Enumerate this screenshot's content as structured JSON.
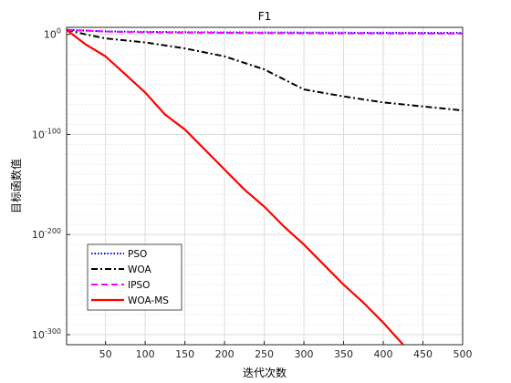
{
  "chart_data": {
    "type": "line",
    "title": "F1",
    "xlabel": "迭代次数",
    "ylabel": "目标函数值",
    "xlim": [
      1,
      500
    ],
    "ylim_exp": [
      -310,
      7
    ],
    "yscale": "log",
    "xticks": [
      50,
      100,
      150,
      200,
      250,
      300,
      350,
      400,
      450,
      500
    ],
    "yticks": [
      {
        "exp": 0,
        "label": "10",
        "sup": "0"
      },
      {
        "exp": -100,
        "label": "10",
        "sup": "-100"
      },
      {
        "exp": -200,
        "label": "10",
        "sup": "-200"
      },
      {
        "exp": -300,
        "label": "10",
        "sup": "-300"
      }
    ],
    "grid": true,
    "legend_position": "bottom-left",
    "series": [
      {
        "name": "PSO",
        "color": "#0000ff",
        "style": "dotted",
        "x": [
          1,
          50,
          100,
          200,
          300,
          400,
          500
        ],
        "log10_y": [
          4.5,
          3.0,
          2.5,
          2.0,
          1.8,
          1.6,
          1.5
        ]
      },
      {
        "name": "WOA",
        "color": "#000000",
        "style": "dashdot",
        "x": [
          1,
          25,
          50,
          100,
          150,
          200,
          250,
          300,
          350,
          400,
          450,
          500
        ],
        "log10_y": [
          4.5,
          0,
          -4,
          -8,
          -14,
          -22,
          -35,
          -55,
          -62,
          -68,
          -72,
          -76
        ]
      },
      {
        "name": "IPSO",
        "color": "#ff00ff",
        "style": "dashed",
        "x": [
          1,
          50,
          100,
          200,
          300,
          400,
          500
        ],
        "log10_y": [
          4.5,
          2.8,
          2.0,
          1.5,
          1.2,
          1.0,
          0.8
        ]
      },
      {
        "name": "WOA-MS",
        "color": "#ff0000",
        "style": "solid",
        "x": [
          1,
          25,
          50,
          75,
          100,
          125,
          150,
          175,
          200,
          225,
          250,
          275,
          300,
          325,
          350,
          375,
          400,
          425
        ],
        "log10_y": [
          4.5,
          -10,
          -22,
          -40,
          -58,
          -80,
          -95,
          -115,
          -135,
          -155,
          -172,
          -192,
          -210,
          -230,
          -250,
          -268,
          -288,
          -310
        ]
      }
    ]
  }
}
